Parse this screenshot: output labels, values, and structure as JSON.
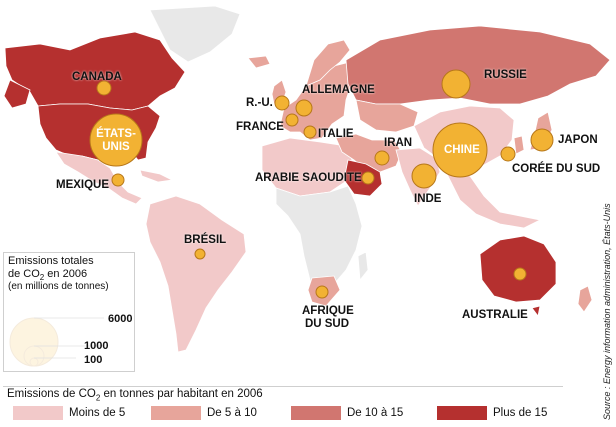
{
  "map": {
    "colors": {
      "water": "#ffffff",
      "land_neutral": "#e8e8e8",
      "lt5": "#f2c9c9",
      "5to10": "#e7a59b",
      "10to15": "#d17670",
      "gt15": "#b5302f",
      "bubble": "#f2b233",
      "bubble_stroke": "#b7771a"
    },
    "labels": {
      "canada": "CANADA",
      "etats_unis_1": "ÉTATS-",
      "etats_unis_2": "UNIS",
      "mexique": "MEXIQUE",
      "bresil": "BRÉSIL",
      "ru": "R.-U.",
      "france": "FRANCE",
      "allemagne": "ALLEMAGNE",
      "italie": "ITALIE",
      "russie": "RUSSIE",
      "iran": "IRAN",
      "arabie": "ARABIE SAOUDITE",
      "chine": "CHINE",
      "inde": "INDE",
      "japon": "JAPON",
      "coree": "CORÉE DU SUD",
      "afrique_1": "AFRIQUE",
      "afrique_2": "DU SUD",
      "australie": "AUSTRALIE"
    },
    "source": "Source : Energy information administration, États-Unis"
  },
  "legend_total": {
    "title_line1": "Emissions totales",
    "title_line2_prefix": "de CO",
    "title_line2_sub": "2",
    "title_line2_suffix": " en 2006",
    "unit": "(en millions de tonnes)",
    "values": [
      "6000",
      "1000",
      "100"
    ]
  },
  "legend_percap": {
    "title_prefix": "Emissions de CO",
    "title_sub": "2",
    "title_suffix": " en tonnes par habitant en 2006",
    "classes": [
      "Moins de 5",
      "De 5 à 10",
      "De 10 à 15",
      "Plus de 15"
    ]
  }
}
